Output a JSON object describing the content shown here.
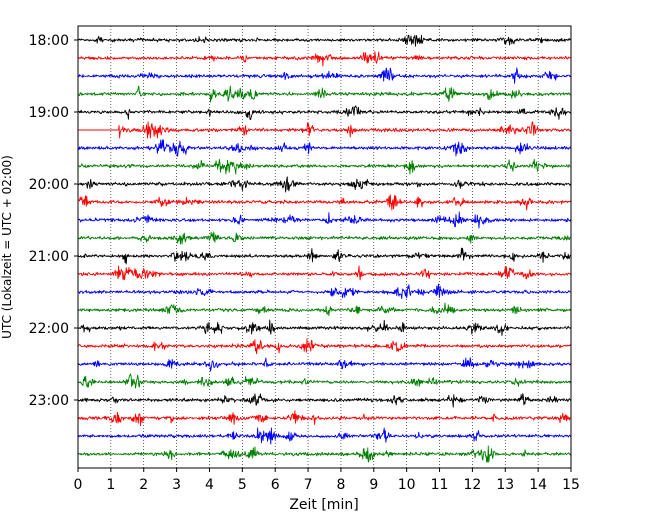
{
  "chart_data": {
    "type": "line",
    "xlabel": "Zeit  [min]",
    "ylabel": "UTC (Lokalzeit = UTC + 02:00)",
    "xlim": [
      0,
      15
    ],
    "x_ticks": [
      "0",
      "1",
      "2",
      "3",
      "4",
      "5",
      "6",
      "7",
      "8",
      "9",
      "10",
      "11",
      "12",
      "13",
      "14",
      "15"
    ],
    "y_ticks": [
      "18:00",
      "19:00",
      "20:00",
      "21:00",
      "22:00",
      "23:00"
    ],
    "grid": "vertical dotted",
    "trace_interval_min": 15,
    "start_time": "18:00",
    "trace_colors": [
      "#000000",
      "#ff0000",
      "#0000ff",
      "#008000"
    ],
    "series": [
      {
        "start": "18:00",
        "color": "#000000"
      },
      {
        "start": "18:15",
        "color": "#ff0000"
      },
      {
        "start": "18:30",
        "color": "#0000ff"
      },
      {
        "start": "18:45",
        "color": "#008000"
      },
      {
        "start": "19:00",
        "color": "#000000"
      },
      {
        "start": "19:15",
        "color": "#ff0000"
      },
      {
        "start": "19:30",
        "color": "#0000ff"
      },
      {
        "start": "19:45",
        "color": "#008000"
      },
      {
        "start": "20:00",
        "color": "#000000"
      },
      {
        "start": "20:15",
        "color": "#ff0000"
      },
      {
        "start": "20:30",
        "color": "#0000ff"
      },
      {
        "start": "20:45",
        "color": "#008000"
      },
      {
        "start": "21:00",
        "color": "#000000"
      },
      {
        "start": "21:15",
        "color": "#ff0000"
      },
      {
        "start": "21:30",
        "color": "#0000ff"
      },
      {
        "start": "21:45",
        "color": "#008000"
      },
      {
        "start": "22:00",
        "color": "#000000"
      },
      {
        "start": "22:15",
        "color": "#ff0000"
      },
      {
        "start": "22:30",
        "color": "#0000ff"
      },
      {
        "start": "22:45",
        "color": "#008000"
      },
      {
        "start": "23:00",
        "color": "#000000"
      },
      {
        "start": "23:15",
        "color": "#ff0000"
      },
      {
        "start": "23:30",
        "color": "#0000ff"
      },
      {
        "start": "23:45",
        "color": "#008000"
      }
    ]
  }
}
